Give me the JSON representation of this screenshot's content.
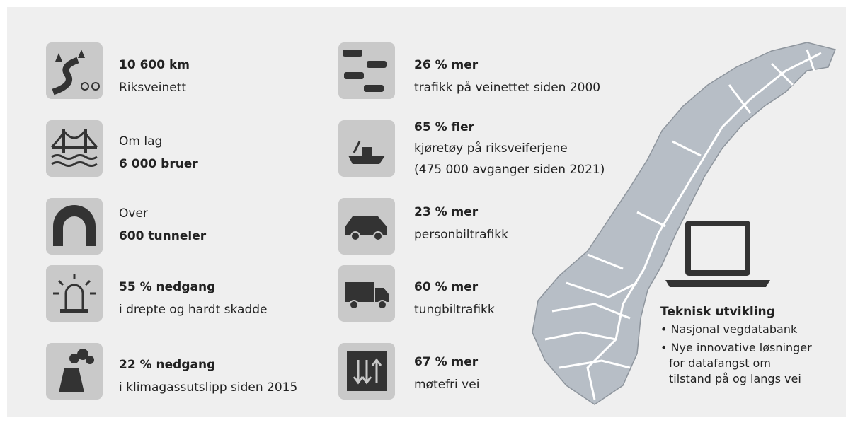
{
  "left": [
    {
      "headline": "10 600 km",
      "detail": "Riksveinett"
    },
    {
      "intro": "Om lag",
      "headline": "6 000 bruer"
    },
    {
      "intro": "Over",
      "headline": "600 tunneler"
    },
    {
      "headline": "55 % nedgang",
      "detail": "i drepte og hardt skadde"
    },
    {
      "headline": "22 % nedgang",
      "detail": "i klimagassutslipp siden 2015"
    }
  ],
  "middle": [
    {
      "headline": "26 % mer",
      "detail": "trafikk på veinettet siden 2000"
    },
    {
      "headline": "65 % fler",
      "detail": "kjøretøy på riksveiferjene",
      "detail_2": "(475 000 avganger siden 2021)"
    },
    {
      "headline": "23 % mer",
      "detail": "personbiltrafikk"
    },
    {
      "headline": "60 % mer",
      "detail": "tungbiltrafikk"
    },
    {
      "headline": "67 % mer",
      "detail": "møtefri vei"
    }
  ],
  "tech": {
    "title": "Teknisk utvikling",
    "bullets": [
      "• Nasjonal vegdatabank",
      "• Nye innovative løsninger",
      "for datafangst om",
      "tilstand på og langs vei"
    ]
  }
}
